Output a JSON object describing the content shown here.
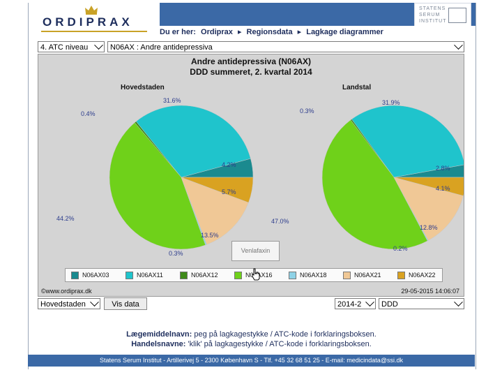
{
  "header": {
    "logo_text": "ORDIPRAX",
    "ssi_text": "STATENS SERUM INSTITUT",
    "breadcrumb_prefix": "Du er her:",
    "breadcrumb": [
      "Ordiprax",
      "Regionsdata",
      "Lagkage diagrammer"
    ]
  },
  "filters": {
    "atc_level": "4. ATC niveau",
    "atc_code": "N06AX : Andre antidepressiva"
  },
  "chart_data": [
    {
      "type": "pie",
      "title": "Andre antidepressiva (N06AX)",
      "subtitle": "DDD summeret, 2. kvartal 2014",
      "name": "Hovedstaden",
      "slices": [
        {
          "label": "N06AX03",
          "value": 4.2
        },
        {
          "label": "N06AX11",
          "value": 31.6
        },
        {
          "label": "N06AX12",
          "value": 0.4
        },
        {
          "label": "N06AX16",
          "value": 44.2
        },
        {
          "label": "N06AX18",
          "value": 0.3
        },
        {
          "label": "N06AX21",
          "value": 13.5
        },
        {
          "label": "N06AX22",
          "value": 5.7
        }
      ],
      "labels_shown": [
        "4.2%",
        "31.6%",
        "0.4%",
        "44.2%",
        "0.3%",
        "13.5%",
        "5.7%"
      ]
    },
    {
      "type": "pie",
      "name": "Landstal",
      "slices": [
        {
          "label": "N06AX03",
          "value": 2.8
        },
        {
          "label": "N06AX11",
          "value": 31.9
        },
        {
          "label": "N06AX12",
          "value": 0.3
        },
        {
          "label": "N06AX16",
          "value": 47.0
        },
        {
          "label": "N06AX18",
          "value": 0.2
        },
        {
          "label": "N06AX21",
          "value": 12.8
        },
        {
          "label": "N06AX22",
          "value": 4.1
        }
      ],
      "labels_shown": [
        "2.8%",
        "31.9%",
        "0.3%",
        "47.0%",
        "0.2%",
        "12.8%",
        "4.1%"
      ]
    }
  ],
  "legend": [
    {
      "label": "N06AX03",
      "color": "#1b8a8f"
    },
    {
      "label": "N06AX11",
      "color": "#1fc4cc"
    },
    {
      "label": "N06AX12",
      "color": "#3f8a1a"
    },
    {
      "label": "N06AX16",
      "color": "#6fd11a"
    },
    {
      "label": "N06AX18",
      "color": "#8fd2e6"
    },
    {
      "label": "N06AX21",
      "color": "#f0c896"
    },
    {
      "label": "N06AX22",
      "color": "#d9a221"
    }
  ],
  "tooltip": "Venlafaxin",
  "chart_footer_left": "©www.ordiprax.dk",
  "chart_footer_right": "29-05-2015 14:06:07",
  "controls": {
    "region": "Hovedstaden",
    "show_button": "Vis data",
    "period": "2014-2",
    "measure": "DDD"
  },
  "info": {
    "line1_label": "Lægemiddelnavn:",
    "line1_text": "peg på lagkagestykke / ATC-kode i forklaringsboksen.",
    "line2_label": "Handelsnavne:",
    "line2_text": "'klik' på lagkagestykke / ATC-kode i forklaringsboksen."
  },
  "footer": "Statens Serum Institut  -  Artillerivej 5  -  2300 København S  -  Tlf. +45 32 68 51 25  -  E-mail: medicindata@ssi.dk"
}
